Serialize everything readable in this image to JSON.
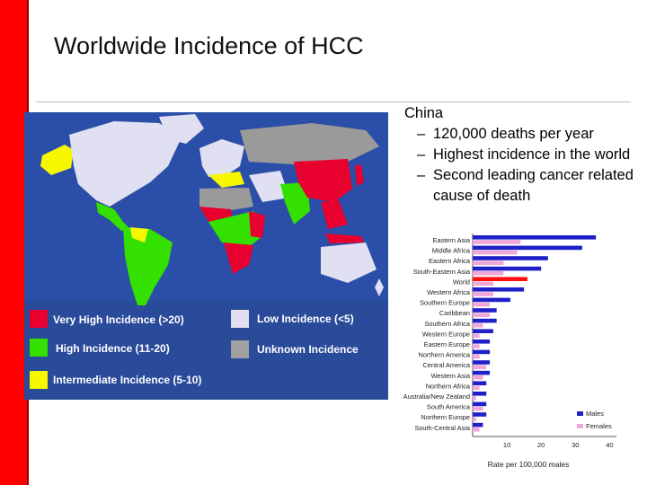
{
  "slide": {
    "title": "Worldwide Incidence of HCC",
    "bullet_main": "China",
    "sub_bullets": [
      {
        "dash": "–",
        "text": "120,000 deaths per year"
      },
      {
        "dash": "–",
        "text": "Highest incidence in the world"
      },
      {
        "dash": "–",
        "text": "Second leading cancer related cause of death"
      }
    ]
  },
  "map_legend": [
    {
      "label": "Very High Incidence (>20)",
      "color": "#e8002e"
    },
    {
      "label": "High Incidence (11-20)",
      "color": "#33e000"
    },
    {
      "label": "Intermediate Incidence (5-10)",
      "color": "#f7f700"
    },
    {
      "label": "Low Incidence (<5)",
      "color": "#e8e8f8"
    },
    {
      "label": "Unknown Incidence",
      "color": "#a0a0a0"
    }
  ],
  "colors": {
    "map_background": "#2a4a9a",
    "ocean": "#2b4fa8",
    "very_high": "#e8002e",
    "high": "#33e000",
    "intermediate": "#f7f700",
    "low": "#e0e0f2",
    "unknown": "#9a9a9a",
    "males": "#2020c8",
    "females": "#f0a8d8",
    "world_male": "#ff1010",
    "accent_red": "#ff0000"
  },
  "chart_data": {
    "type": "bar",
    "orientation": "horizontal",
    "categories": [
      "Eastern Asia",
      "Middle Africa",
      "Eastern Africa",
      "South-Eastern Asia",
      "World",
      "Western Africa",
      "Southern Europe",
      "Caribbean",
      "Southern Africa",
      "Western Europe",
      "Eastern Europe",
      "Northern America",
      "Central America",
      "Western Asia",
      "Northern Africa",
      "Australia/New Zealand",
      "South America",
      "Northern Europe",
      "South-Central Asia"
    ],
    "series": [
      {
        "name": "Males",
        "values": [
          36,
          32,
          22,
          20,
          16,
          15,
          11,
          7,
          7,
          6,
          5,
          5,
          5,
          5,
          4,
          4,
          4,
          4,
          3
        ]
      },
      {
        "name": "Females",
        "values": [
          14,
          13,
          9,
          9,
          6,
          6,
          5,
          5,
          3,
          2,
          2,
          2,
          4,
          3,
          2,
          1,
          3,
          1,
          2
        ]
      }
    ],
    "xlabel": "Rate per 100,000 males",
    "ylabel": "",
    "xticks": [
      10,
      20,
      30,
      40,
      50
    ],
    "xlim": [
      0,
      42
    ],
    "legend": "bottom-right",
    "grid": false
  }
}
